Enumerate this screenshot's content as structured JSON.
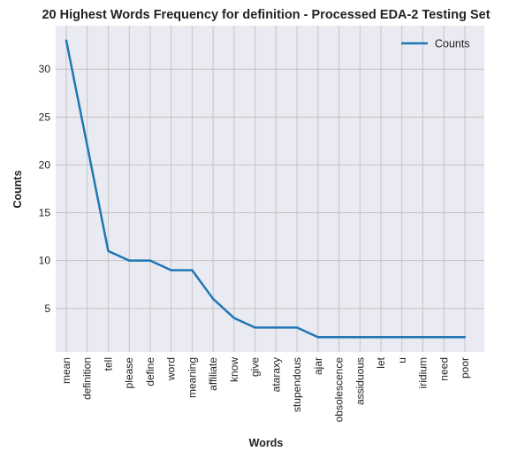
{
  "chart_data": {
    "type": "line",
    "title": "20 Highest Words Frequency for definition - Processed EDA-2 Testing Set",
    "xlabel": "Words",
    "ylabel": "Counts",
    "categories": [
      "mean",
      "definition",
      "tell",
      "please",
      "define",
      "word",
      "meaning",
      "affiliate",
      "know",
      "give",
      "ataraxy",
      "stupendous",
      "ajar",
      "obsolescence",
      "assiduous",
      "let",
      "u",
      "iridium",
      "need",
      "poor"
    ],
    "series": [
      {
        "name": "Counts",
        "values": [
          33,
          22,
          11,
          10,
          10,
          9,
          9,
          6,
          4,
          3,
          3,
          3,
          2,
          2,
          2,
          2,
          2,
          2,
          2,
          2
        ],
        "color": "#1f77b4"
      }
    ],
    "yticks": [
      5,
      10,
      15,
      20,
      25,
      30
    ],
    "ylim": [
      0.45,
      34.55
    ],
    "grid": true,
    "legend": "top-right",
    "colors": {
      "background": "#eaeaf2",
      "grid": "#c4c4c4",
      "line": "#1f77b4"
    }
  }
}
